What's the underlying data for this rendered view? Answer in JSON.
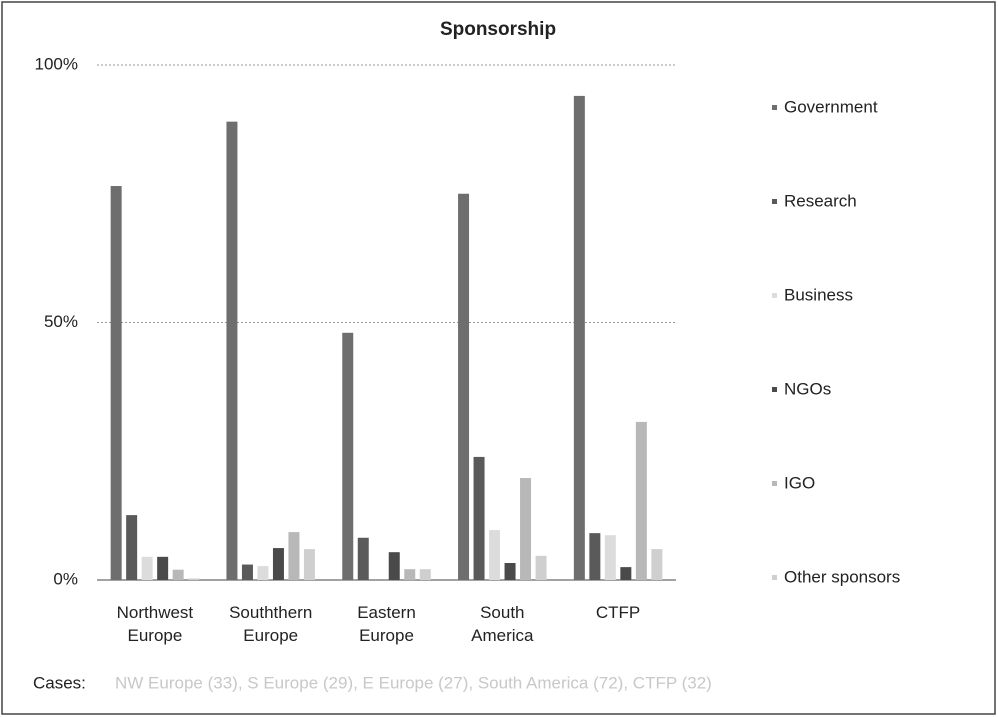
{
  "chart_data": {
    "type": "bar",
    "title": "Sponsorship",
    "categories": [
      "Northwest Europe",
      "Souththern Europe",
      "Eastern Europe",
      "South America",
      "CTFP"
    ],
    "series": [
      {
        "name": "Government",
        "color": "#6e6e6e",
        "values": [
          76.5,
          89,
          48,
          75,
          94
        ]
      },
      {
        "name": "Research",
        "color": "#5a5a5a",
        "values": [
          12.6,
          3,
          8.2,
          23.9,
          9.1
        ]
      },
      {
        "name": "Business",
        "color": "#dcdcdc",
        "values": [
          4.5,
          2.7,
          0,
          9.7,
          8.7
        ]
      },
      {
        "name": "NGOs",
        "color": "#4a4a4a",
        "values": [
          4.5,
          6.2,
          5.4,
          3.3,
          2.5
        ]
      },
      {
        "name": "IGO",
        "color": "#b8b8b8",
        "values": [
          2,
          9.3,
          2.1,
          19.8,
          30.7
        ]
      },
      {
        "name": "Other sponsors",
        "color": "#cfcfcf",
        "values": [
          0.3,
          6,
          2.1,
          4.7,
          6
        ]
      }
    ],
    "ylim": [
      0,
      100
    ],
    "yticks": [
      {
        "value": 0,
        "label": "0%"
      },
      {
        "value": 50,
        "label": "50%"
      },
      {
        "value": 100,
        "label": "100%"
      }
    ],
    "grid": true,
    "legend": "right",
    "annotation": "Cases:",
    "note": "NW Europe (33), S Europe (29), E Europe (27), South America (72), CTFP (32)"
  }
}
